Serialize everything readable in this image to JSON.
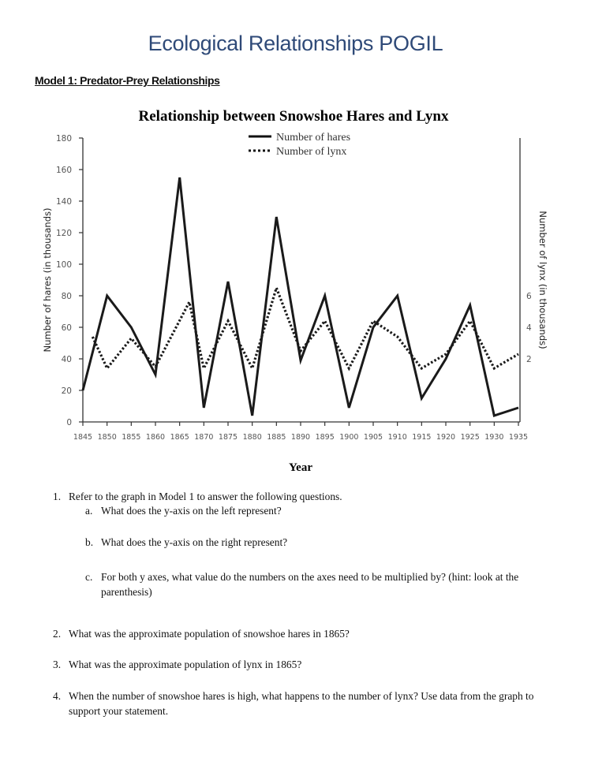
{
  "page": {
    "title": "Ecological Relationships POGIL",
    "model_heading": "Model 1: Predator-Prey Relationships"
  },
  "chart_data": {
    "type": "line",
    "title": "Relationship between Snowshoe Hares and Lynx",
    "xlabel": "Year",
    "ylabel_left": "Number of hares (in thousands)",
    "ylabel_right": "Number of lynx (in thousands)",
    "ylim_left": [
      0,
      180
    ],
    "yticks_left": [
      "0",
      "20",
      "40",
      "60",
      "80",
      "100",
      "120",
      "140",
      "160",
      "180"
    ],
    "yticks_right": [
      "2",
      "4",
      "6"
    ],
    "xticks": [
      "1845",
      "1850",
      "1855",
      "1860",
      "1865",
      "1870",
      "1875",
      "1880",
      "1885",
      "1890",
      "1895",
      "1900",
      "1905",
      "1910",
      "1915",
      "1920",
      "1925",
      "1930",
      "1935"
    ],
    "grid": false,
    "legend_placement": "top-center",
    "series": [
      {
        "name": "Number of hares",
        "axis": "left",
        "style": "solid",
        "x": [
          1845,
          1850,
          1855,
          1860,
          1865,
          1870,
          1875,
          1880,
          1885,
          1890,
          1895,
          1900,
          1905,
          1910,
          1915,
          1920,
          1925,
          1930,
          1935
        ],
        "y": [
          20,
          80,
          60,
          30,
          155,
          9,
          89,
          4,
          130,
          39,
          80,
          9,
          60,
          80,
          15,
          40,
          74,
          4,
          9
        ]
      },
      {
        "name": "Number of lynx",
        "axis": "right",
        "style": "dotted",
        "x": [
          1847,
          1850,
          1855,
          1860,
          1867,
          1870,
          1875,
          1880,
          1885,
          1890,
          1895,
          1900,
          1905,
          1910,
          1915,
          1920,
          1925,
          1930,
          1935
        ],
        "y": [
          3.4,
          1.4,
          3.3,
          1.5,
          5.6,
          1.4,
          4.4,
          1.4,
          6.5,
          2.5,
          4.4,
          1.4,
          4.4,
          3.4,
          1.4,
          2.3,
          4.4,
          1.4,
          2.3
        ]
      }
    ]
  },
  "questions": {
    "q1": {
      "num": "1.",
      "text": "Refer to the graph in Model 1 to answer the following questions."
    },
    "q1a": {
      "num": "a.",
      "text": "What does the y-axis on the left represent?"
    },
    "q1b": {
      "num": "b.",
      "text": "What does the y-axis on the right represent?"
    },
    "q1c": {
      "num": "c.",
      "text": "For both y axes, what value do the numbers on the axes need to be multiplied by? (hint: look at the parenthesis)"
    },
    "q2": {
      "num": "2.",
      "text": "What was the approximate population of snowshoe hares in 1865?"
    },
    "q3": {
      "num": "3.",
      "text": "What was the approximate population of lynx in 1865?"
    },
    "q4": {
      "num": "4.",
      "text": "When the number of snowshoe hares is high, what happens to the number of lynx? Use data from the graph to support your statement."
    }
  }
}
